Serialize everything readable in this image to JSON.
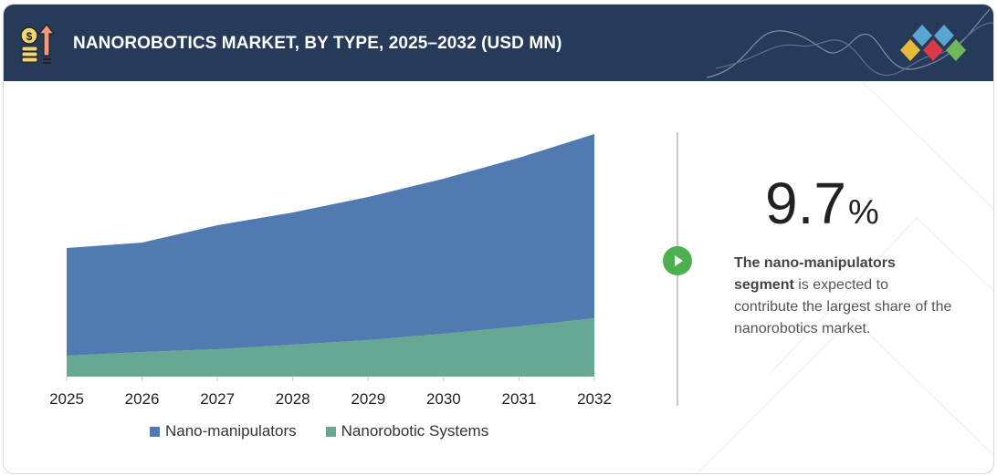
{
  "header": {
    "title": "NANOROBOTICS MARKET, BY TYPE, 2025–2032 (USD MN)"
  },
  "colors": {
    "header_bg": "#263a59",
    "nano_manipulators": "#517bb0",
    "nanorobotic_systems": "#67a895",
    "accent_green": "#4caf50",
    "logo": [
      "#e8b93a",
      "#d93a45",
      "#6fb85b",
      "#5aa5cf"
    ]
  },
  "chart_data": {
    "type": "area",
    "stacked": true,
    "categories": [
      "2025",
      "2026",
      "2027",
      "2028",
      "2029",
      "2030",
      "2031",
      "2032"
    ],
    "series": [
      {
        "name": "Nanorobotic Systems",
        "values": [
          23,
          27,
          30,
          35,
          40,
          47,
          55,
          64
        ]
      },
      {
        "name": "Nano-manipulators",
        "values": [
          118,
          120,
          136,
          145,
          157,
          170,
          185,
          202
        ]
      }
    ],
    "ylim": [
      0,
      270
    ],
    "y_axis_shown": false,
    "grid": false,
    "legend_position": "bottom",
    "xlabel": "",
    "ylabel": ""
  },
  "highlight": {
    "value": "9.7",
    "unit": "%",
    "bold_text": "The nano-manipulators segment",
    "text": " is expected to contribute the largest share of the nanorobotics market."
  },
  "icons": {
    "header": "coins-up-arrow-icon",
    "play": "play-icon",
    "logo": "diamond-logo"
  }
}
